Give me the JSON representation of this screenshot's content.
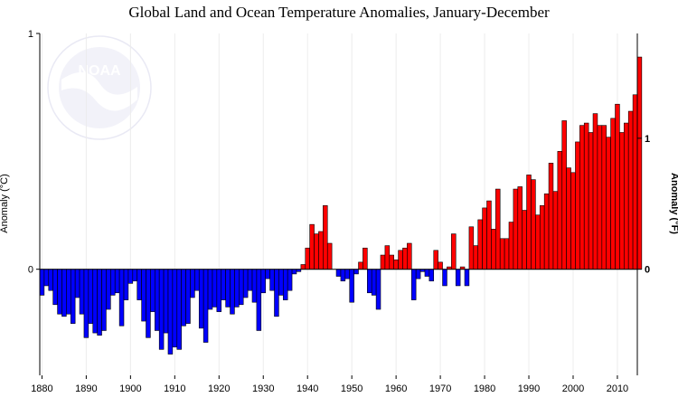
{
  "chart_data": {
    "type": "bar",
    "title": "Global Land and Ocean Temperature Anomalies, January-December",
    "ylabel": "Anomaly (°C)",
    "ylabel_right": "Anomaly (°F)",
    "xlabel": "",
    "grid": true,
    "x_tick_labels": [
      "1880",
      "1890",
      "1900",
      "1910",
      "1920",
      "1930",
      "1940",
      "1950",
      "1960",
      "1970",
      "1980",
      "1990",
      "2000",
      "2010"
    ],
    "y_tick_labels": [
      "0",
      "1"
    ],
    "y_tick_labels_right": [
      "0",
      "1"
    ],
    "xlim": [
      1880,
      2015
    ],
    "ylim": [
      -0.45,
      1.0
    ],
    "colors": {
      "positive": "#ff0000",
      "negative": "#0000ff",
      "outline": "#000000",
      "logo": "#d8d8ec"
    },
    "logo_text": "NOAA",
    "years": [
      1880,
      1881,
      1882,
      1883,
      1884,
      1885,
      1886,
      1887,
      1888,
      1889,
      1890,
      1891,
      1892,
      1893,
      1894,
      1895,
      1896,
      1897,
      1898,
      1899,
      1900,
      1901,
      1902,
      1903,
      1904,
      1905,
      1906,
      1907,
      1908,
      1909,
      1910,
      1911,
      1912,
      1913,
      1914,
      1915,
      1916,
      1917,
      1918,
      1919,
      1920,
      1921,
      1922,
      1923,
      1924,
      1925,
      1926,
      1927,
      1928,
      1929,
      1930,
      1931,
      1932,
      1933,
      1934,
      1935,
      1936,
      1937,
      1938,
      1939,
      1940,
      1941,
      1942,
      1943,
      1944,
      1945,
      1946,
      1947,
      1948,
      1949,
      1950,
      1951,
      1952,
      1953,
      1954,
      1955,
      1956,
      1957,
      1958,
      1959,
      1960,
      1961,
      1962,
      1963,
      1964,
      1965,
      1966,
      1967,
      1968,
      1969,
      1970,
      1971,
      1972,
      1973,
      1974,
      1975,
      1976,
      1977,
      1978,
      1979,
      1980,
      1981,
      1982,
      1983,
      1984,
      1985,
      1986,
      1987,
      1988,
      1989,
      1990,
      1991,
      1992,
      1993,
      1994,
      1995,
      1996,
      1997,
      1998,
      1999,
      2000,
      2001,
      2002,
      2003,
      2004,
      2005,
      2006,
      2007,
      2008,
      2009,
      2010,
      2011,
      2012,
      2013,
      2014,
      2015
    ],
    "values": [
      -0.11,
      -0.07,
      -0.09,
      -0.15,
      -0.19,
      -0.2,
      -0.19,
      -0.23,
      -0.12,
      -0.19,
      -0.29,
      -0.23,
      -0.27,
      -0.28,
      -0.26,
      -0.17,
      -0.11,
      -0.1,
      -0.24,
      -0.13,
      -0.06,
      -0.05,
      -0.13,
      -0.22,
      -0.29,
      -0.18,
      -0.26,
      -0.34,
      -0.27,
      -0.36,
      -0.33,
      -0.34,
      -0.24,
      -0.23,
      -0.12,
      -0.09,
      -0.25,
      -0.31,
      -0.17,
      -0.16,
      -0.18,
      -0.13,
      -0.16,
      -0.19,
      -0.16,
      -0.15,
      -0.12,
      -0.09,
      -0.14,
      -0.26,
      -0.1,
      -0.04,
      -0.09,
      -0.2,
      -0.11,
      -0.13,
      -0.09,
      -0.02,
      -0.01,
      0.02,
      0.09,
      0.19,
      0.15,
      0.16,
      0.27,
      0.11,
      0.0,
      -0.03,
      -0.05,
      -0.04,
      -0.14,
      -0.02,
      0.03,
      0.09,
      -0.1,
      -0.11,
      -0.17,
      0.06,
      0.1,
      0.06,
      0.04,
      0.08,
      0.09,
      0.11,
      -0.13,
      -0.04,
      -0.01,
      -0.03,
      -0.05,
      0.08,
      0.03,
      -0.07,
      0.01,
      0.15,
      -0.07,
      0.01,
      -0.07,
      0.18,
      0.1,
      0.21,
      0.26,
      0.29,
      0.17,
      0.34,
      0.13,
      0.13,
      0.2,
      0.34,
      0.35,
      0.25,
      0.4,
      0.38,
      0.23,
      0.27,
      0.32,
      0.45,
      0.33,
      0.5,
      0.63,
      0.43,
      0.41,
      0.54,
      0.61,
      0.62,
      0.58,
      0.66,
      0.61,
      0.61,
      0.56,
      0.64,
      0.7,
      0.58,
      0.62,
      0.67,
      0.74,
      0.9
    ]
  }
}
